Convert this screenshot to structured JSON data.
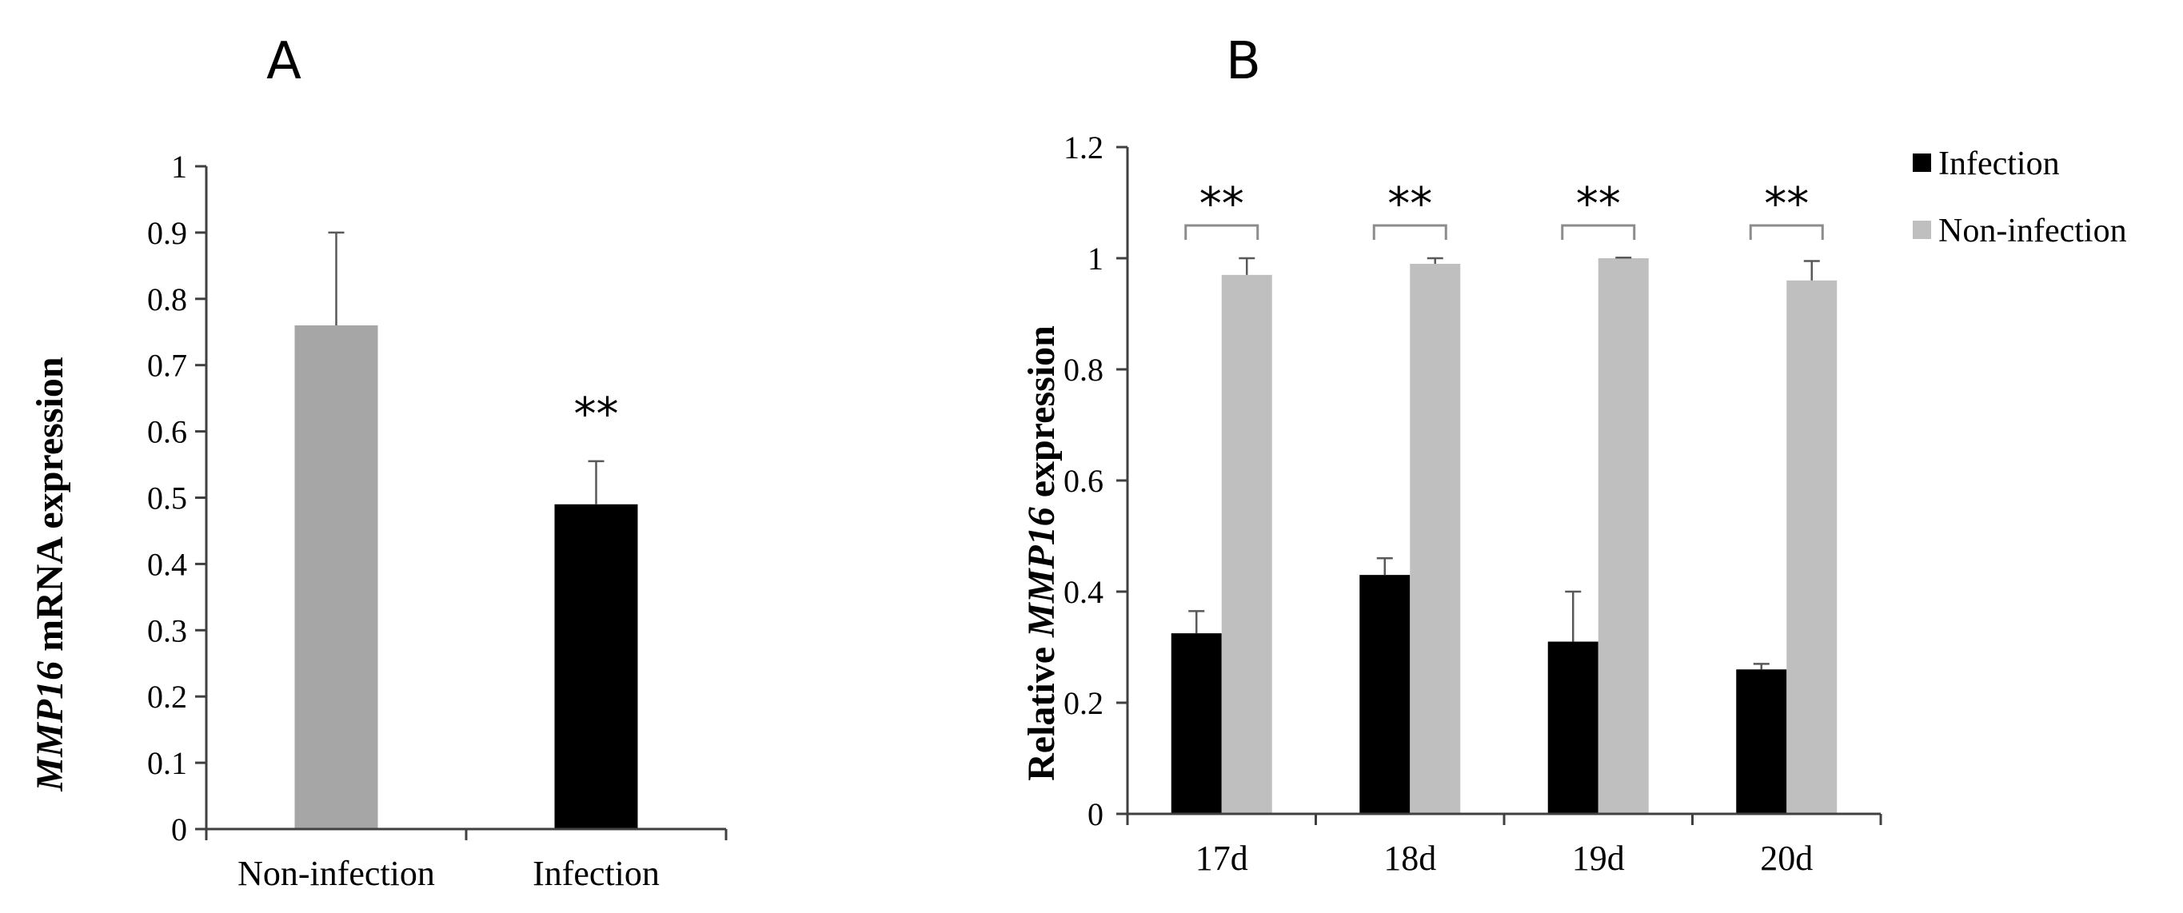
{
  "chart_data": [
    {
      "panel_label": "A",
      "type": "bar",
      "categories": [
        "Non-infection",
        "Infection"
      ],
      "values": [
        0.76,
        0.49
      ],
      "errors": [
        0.14,
        0.065
      ],
      "colors": [
        "#a6a6a6",
        "#000000"
      ],
      "significance": [
        "",
        "**"
      ],
      "ylabel_gene": "MMP16",
      "ylabel_rest": " mRNA  expression",
      "ylim": [
        0,
        1
      ],
      "yticks": [
        "0",
        "0.1",
        "0.2",
        "0.3",
        "0.4",
        "0.5",
        "0.6",
        "0.7",
        "0.8",
        "0.9",
        "1"
      ],
      "grid": false
    },
    {
      "panel_label": "B",
      "type": "bar",
      "categories": [
        "17d",
        "18d",
        "19d",
        "20d"
      ],
      "series": [
        {
          "name": "Infection",
          "color": "#000000",
          "values": [
            0.325,
            0.43,
            0.31,
            0.26
          ],
          "errors": [
            0.04,
            0.03,
            0.09,
            0.01
          ]
        },
        {
          "name": "Non-infection",
          "color": "#bfbfbf",
          "values": [
            0.97,
            0.99,
            1.0,
            0.96
          ],
          "errors": [
            0.03,
            0.01,
            0.001,
            0.035
          ]
        }
      ],
      "significance": [
        "**",
        "**",
        "**",
        "**"
      ],
      "ylabel_prefix": "Relative ",
      "ylabel_gene": "MMP16",
      "ylabel_rest": " expression",
      "ylim": [
        0,
        1.2
      ],
      "yticks": [
        "0",
        "0.2",
        "0.4",
        "0.6",
        "0.8",
        "1",
        "1.2"
      ],
      "legend_position": "top-right",
      "grid": false
    }
  ]
}
